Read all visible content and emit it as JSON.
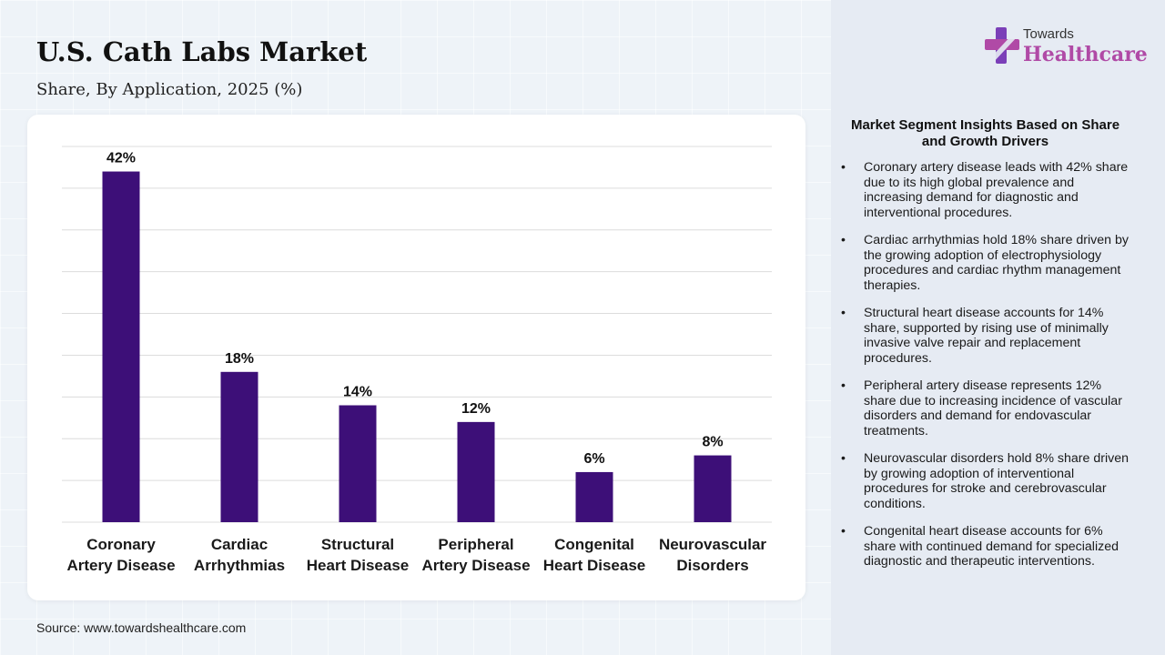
{
  "header": {
    "title": "U.S. Cath Labs Market",
    "subtitle": "Share, By Application, 2025 (%)"
  },
  "source": "Source: www.towardshealthcare.com",
  "logo": {
    "line1": "Towards",
    "line2": "Healthcare",
    "icon": "medical-cross-icon",
    "brand_color": "#b04aa6",
    "icon_color": "#7b3fb8"
  },
  "insights": {
    "title": "Market Segment Insights Based on Share and Growth Drivers",
    "items": [
      "Coronary artery disease leads with 42% share due to its high global prevalence and increasing demand for diagnostic and interventional procedures.",
      "Cardiac arrhythmias hold 18% share driven by the growing adoption of electrophysiology procedures and cardiac rhythm management therapies.",
      "Structural heart disease accounts for 14% share, supported by rising use of minimally invasive valve repair and replacement procedures.",
      "Peripheral artery disease represents 12% share due to increasing incidence of vascular disorders and demand for endovascular treatments.",
      "Neurovascular disorders hold 8% share driven by growing adoption of interventional procedures for stroke and cerebrovascular conditions.",
      "Congenital heart disease accounts for 6% share with continued demand for specialized diagnostic and therapeutic interventions."
    ]
  },
  "chart_data": {
    "type": "bar",
    "categories": [
      [
        "Coronary",
        "Artery Disease"
      ],
      [
        "Cardiac",
        "Arrhythmias"
      ],
      [
        "Structural",
        "Heart Disease"
      ],
      [
        "Peripheral",
        "Artery Disease"
      ],
      [
        "Congenital",
        "Heart Disease"
      ],
      [
        "Neurovascular",
        "Disorders"
      ]
    ],
    "values": [
      42,
      18,
      14,
      12,
      6,
      8
    ],
    "data_labels": [
      "42%",
      "18%",
      "14%",
      "12%",
      "6%",
      "8%"
    ],
    "ylim": [
      0,
      45
    ],
    "grid": true,
    "bar_color": "#3d0f78",
    "grid_color": "#dcdcdc"
  }
}
